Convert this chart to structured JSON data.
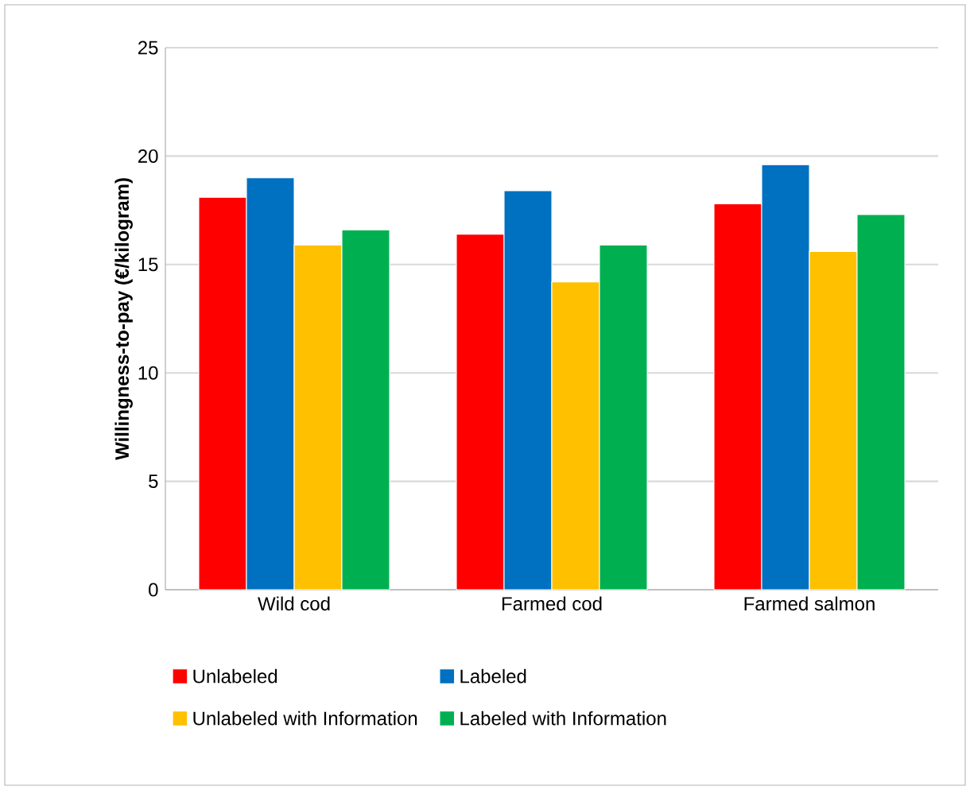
{
  "chart_data": {
    "type": "bar",
    "ylabel": "Willingness-to-pay (€/kilogram)",
    "categories": [
      "Wild cod",
      "Farmed cod",
      "Farmed salmon"
    ],
    "series": [
      {
        "name": "Unlabeled",
        "color": "#ff0000",
        "values": [
          18.1,
          16.4,
          17.8
        ]
      },
      {
        "name": "Labeled",
        "color": "#0070c0",
        "values": [
          19.0,
          18.4,
          19.6
        ]
      },
      {
        "name": "Unlabeled with Information",
        "color": "#ffc000",
        "values": [
          15.9,
          14.2,
          15.6
        ]
      },
      {
        "name": "Labeled with Information",
        "color": "#00b050",
        "values": [
          16.6,
          15.9,
          17.3
        ]
      }
    ],
    "ylim": [
      0,
      25
    ],
    "yticks": [
      0,
      5,
      10,
      15,
      20,
      25
    ],
    "grid": "y",
    "legend": "bottom"
  }
}
